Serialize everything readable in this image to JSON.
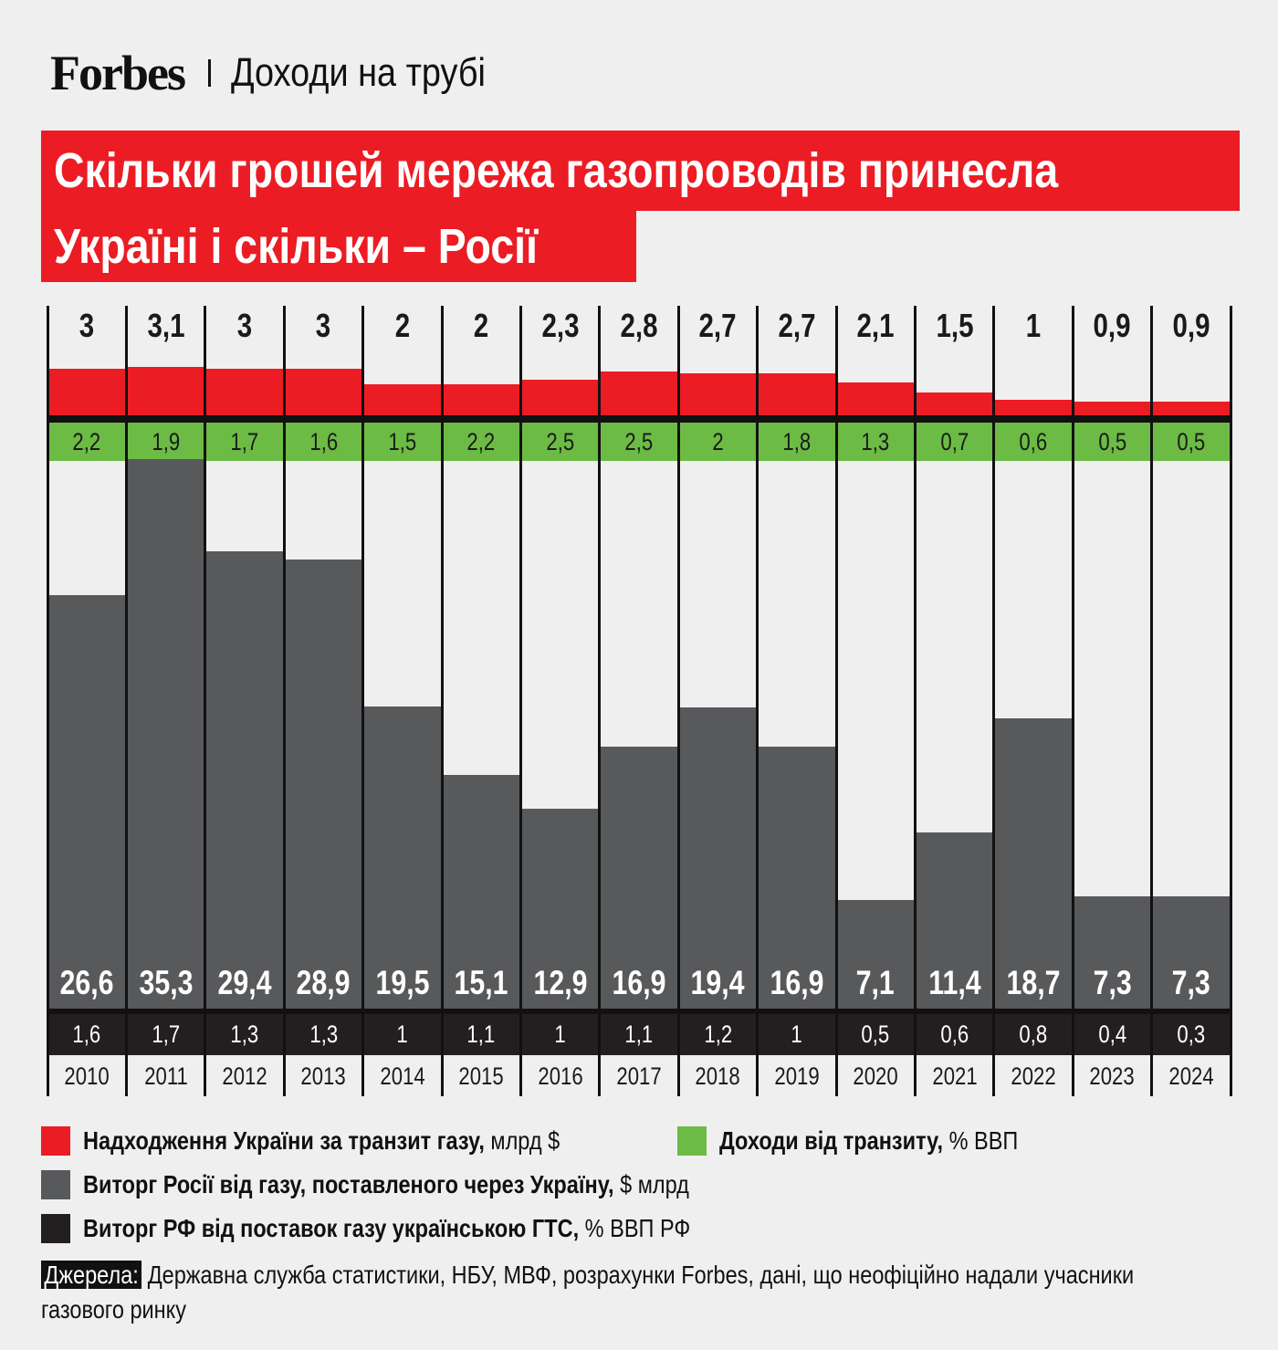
{
  "header": {
    "brand": "Forbes",
    "subtitle": "Доходи на трубі"
  },
  "title": {
    "line1": "Скільки грошей мережа газопроводів принесла",
    "line2": "Україні і скільки – Росії"
  },
  "colors": {
    "red": "#ec1c24",
    "green": "#6cbb45",
    "gray": "#58595b",
    "black": "#231f20",
    "background": "#efefef"
  },
  "legend": [
    {
      "bold": "Надходження України за транзит газу,",
      "unit": " млрд $",
      "color": "#ec1c24"
    },
    {
      "bold": "Доходи від транзиту,",
      "unit": " % ВВП",
      "color": "#6cbb45"
    },
    {
      "bold": "Виторг Росії від газу, поставленого через Україну,",
      "unit": " $ млрд",
      "color": "#58595b"
    },
    {
      "bold": "Виторг РФ від поставок газу українською ГТС,",
      "unit": " % ВВП РФ",
      "color": "#231f20"
    }
  ],
  "sources": {
    "label": "Джерела:",
    "text": " Державна служба статистики, НБУ, МВФ, розрахунки Forbes, дані, що неофіційно надали учасники газового ринку"
  },
  "chart_data": {
    "type": "bar",
    "title": "Скільки грошей мережа газопроводів принесла Україні і скільки – Росії",
    "categories": [
      "2010",
      "2011",
      "2012",
      "2013",
      "2014",
      "2015",
      "2016",
      "2017",
      "2018",
      "2019",
      "2020",
      "2021",
      "2022",
      "2023",
      "2024"
    ],
    "series": [
      {
        "name": "Надходження України за транзит газу, млрд $",
        "color": "#ec1c24",
        "values": [
          3,
          3.1,
          3,
          3,
          2,
          2,
          2.3,
          2.8,
          2.7,
          2.7,
          2.1,
          1.5,
          1,
          0.9,
          0.9
        ],
        "labels": [
          "3",
          "3,1",
          "3",
          "3",
          "2",
          "2",
          "2,3",
          "2,8",
          "2,7",
          "2,7",
          "2,1",
          "1,5",
          "1",
          "0,9",
          "0,9"
        ]
      },
      {
        "name": "Доходи від транзиту, % ВВП",
        "color": "#6cbb45",
        "values": [
          2.2,
          1.9,
          1.7,
          1.6,
          1.5,
          2.2,
          2.5,
          2.5,
          2,
          1.8,
          1.3,
          0.7,
          0.6,
          0.5,
          0.5
        ],
        "labels": [
          "2,2",
          "1,9",
          "1,7",
          "1,6",
          "1,5",
          "2,2",
          "2,5",
          "2,5",
          "2",
          "1,8",
          "1,3",
          "0,7",
          "0,6",
          "0,5",
          "0,5"
        ]
      },
      {
        "name": "Виторг Росії від газу, поставленого через Україну, $ млрд",
        "color": "#58595b",
        "values": [
          26.6,
          35.3,
          29.4,
          28.9,
          19.5,
          15.1,
          12.9,
          16.9,
          19.4,
          16.9,
          7.1,
          11.4,
          18.7,
          7.3,
          7.3
        ],
        "labels": [
          "26,6",
          "35,3",
          "29,4",
          "28,9",
          "19,5",
          "15,1",
          "12,9",
          "16,9",
          "19,4",
          "16,9",
          "7,1",
          "11,4",
          "18,7",
          "7,3",
          "7,3"
        ]
      },
      {
        "name": "Виторг РФ від поставок газу українською ГТС, % ВВП РФ",
        "color": "#231f20",
        "values": [
          1.6,
          1.7,
          1.3,
          1.3,
          1,
          1.1,
          1,
          1.1,
          1.2,
          1,
          0.5,
          0.6,
          0.8,
          0.4,
          0.3
        ],
        "labels": [
          "1,6",
          "1,7",
          "1,3",
          "1,3",
          "1",
          "1,1",
          "1",
          "1,1",
          "1,2",
          "1",
          "0,5",
          "0,6",
          "0,8",
          "0,4",
          "0,3"
        ]
      }
    ],
    "xlabel": "",
    "ylabel": "",
    "grid": false,
    "legend_position": "bottom"
  }
}
